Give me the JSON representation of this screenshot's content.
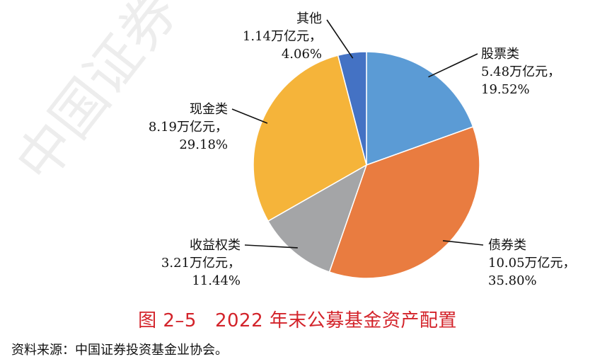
{
  "watermark": "中国证券",
  "chart_data": {
    "type": "pie",
    "title": "2022 年末公募基金资产配置",
    "figure_number": "图 2–5",
    "unit": "万亿元",
    "slices": [
      {
        "name": "股票类",
        "value": 5.48,
        "value_label": "5.48万亿元，",
        "percent": 19.52,
        "percent_label": "19.52%",
        "color": "#5b9bd5"
      },
      {
        "name": "债券类",
        "value": 10.05,
        "value_label": "10.05万亿元，",
        "percent": 35.8,
        "percent_label": "35.80%",
        "color": "#e97c40"
      },
      {
        "name": "收益权类",
        "value": 3.21,
        "value_label": "3.21万亿元，",
        "percent": 11.44,
        "percent_label": "11.44%",
        "color": "#a4a5a7"
      },
      {
        "name": "现金类",
        "value": 8.19,
        "value_label": "8.19万亿元，",
        "percent": 29.18,
        "percent_label": "29.18%",
        "color": "#f5b43a"
      },
      {
        "name": "其他",
        "value": 1.14,
        "value_label": "1.14万亿元，",
        "percent": 4.06,
        "percent_label": "4.06%",
        "color": "#4472c4"
      }
    ]
  },
  "source_note": "资料来源：中国证券投资基金业协会。"
}
